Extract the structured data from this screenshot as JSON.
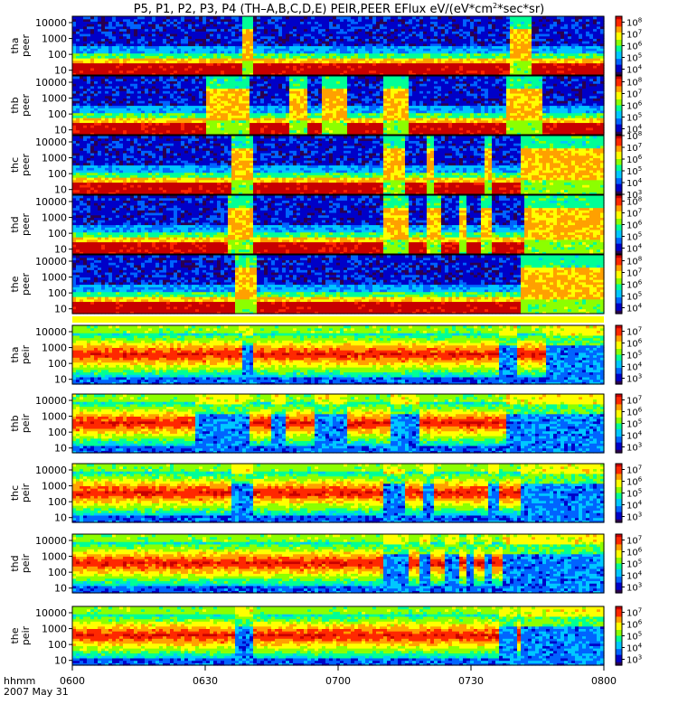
{
  "chart_data": {
    "type": "heatmap",
    "title": "P5, P1, P2, P3, P4 (TH-A,B,C,D,E) PEIR,PEER EFlux eV/(eV*cm2*sec*sr)",
    "title_main": "P5, P1, P2, P3, P4 (TH–A,B,C,D,E) PEIR,PEER EFlux eV/(eV*cm",
    "title_sup": "2",
    "title_tail": "*sec*sr)",
    "time_label": "hhmm",
    "date_label": "2007 May 31",
    "x_ticks": [
      "0600",
      "0630",
      "0700",
      "0730",
      "0800"
    ],
    "x_range_minutes": [
      0,
      120
    ],
    "y_ticks": [
      "10",
      "100",
      "1000",
      "10000"
    ],
    "y_scale": "log",
    "y_range_eV": [
      5,
      25000
    ],
    "panels": [
      {
        "probe": "tha",
        "species": "peer",
        "cbar_ticks": [
          "8",
          "7",
          "6",
          "5",
          "4"
        ],
        "cbar_range": [
          3.5,
          8.5
        ]
      },
      {
        "probe": "thb",
        "species": "peer",
        "cbar_ticks": [
          "8",
          "7",
          "6",
          "5",
          "4"
        ],
        "cbar_range": [
          3.5,
          8.5
        ]
      },
      {
        "probe": "thc",
        "species": "peer",
        "cbar_ticks": [
          "8",
          "7",
          "6",
          "5",
          "4",
          "3"
        ],
        "cbar_range": [
          3,
          8
        ]
      },
      {
        "probe": "thd",
        "species": "peer",
        "cbar_ticks": [
          "8",
          "7",
          "6",
          "5",
          "4"
        ],
        "cbar_range": [
          3.5,
          8.5
        ]
      },
      {
        "probe": "the",
        "species": "peer",
        "cbar_ticks": [
          "8",
          "7",
          "6",
          "5",
          "4"
        ],
        "cbar_range": [
          3.5,
          8.5
        ]
      },
      {
        "probe": "tha",
        "species": "peir",
        "cbar_ticks": [
          "7",
          "6",
          "5",
          "4",
          "3"
        ],
        "cbar_range": [
          2.5,
          7.5
        ]
      },
      {
        "probe": "thb",
        "species": "peir",
        "cbar_ticks": [
          "7",
          "6",
          "5",
          "4",
          "3"
        ],
        "cbar_range": [
          2.5,
          7.5
        ]
      },
      {
        "probe": "thc",
        "species": "peir",
        "cbar_ticks": [
          "7",
          "6",
          "5",
          "4",
          "3"
        ],
        "cbar_range": [
          2.5,
          7.5
        ]
      },
      {
        "probe": "thd",
        "species": "peir",
        "cbar_ticks": [
          "7",
          "6",
          "5",
          "4",
          "3"
        ],
        "cbar_range": [
          2.5,
          7.5
        ]
      },
      {
        "probe": "the",
        "species": "peir",
        "cbar_ticks": [
          "7",
          "6",
          "5",
          "4",
          "3"
        ],
        "cbar_range": [
          2.5,
          7.5
        ]
      }
    ],
    "colormap": [
      "#2a0050",
      "#0000c8",
      "#0064ff",
      "#00c8ff",
      "#00ff96",
      "#8cff00",
      "#ffff00",
      "#ffa000",
      "#ff2800",
      "#c80000"
    ],
    "separator_color": "#ffff00"
  }
}
